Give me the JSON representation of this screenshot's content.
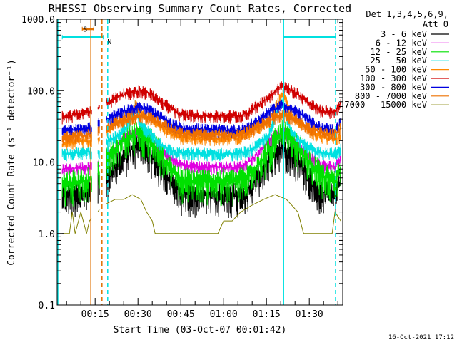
{
  "chart_data": {
    "type": "line",
    "title": "RHESSI Observing Summary Count Rates, Corrected",
    "xlabel": "Start Time (03-Oct-07 00:01:42)",
    "ylabel": "Corrected Count Rate (s⁻¹ detector⁻¹)",
    "yscale": "log",
    "ylim": [
      0.1,
      1000
    ],
    "y_ticks": [
      "1000.0",
      "100.0",
      "10.0",
      "1.0",
      "0.1"
    ],
    "x_ticks": [
      "00:15",
      "00:30",
      "00:45",
      "01:00",
      "01:15",
      "01:30"
    ],
    "xlim_minutes": [
      1.7,
      101.7
    ],
    "grid": false,
    "legend_title": "Det 1,3,4,5,6,9,",
    "legend_subtitle": "Att 0",
    "legend_position": "top-right",
    "footer_date": "16-Oct-2021 17:12",
    "flags": [
      {
        "label": "S",
        "color": "#e07000",
        "start_min": 10.5,
        "end_min": 14.5,
        "level": 730
      },
      {
        "label": "N",
        "color": "#00e0e0",
        "start_min": 3.5,
        "end_min": 17.8,
        "level": 560
      },
      {
        "label": "",
        "color": "#00e0e0",
        "start_min": 81.0,
        "end_min": 99.2,
        "level": 560
      }
    ],
    "vlines": [
      {
        "min": 13.5,
        "color": "#e07000",
        "style": "solid"
      },
      {
        "min": 17.4,
        "color": "#e07000",
        "style": "dashed"
      },
      {
        "min": 19.4,
        "color": "#00e0e0",
        "style": "dashed"
      },
      {
        "min": 81.0,
        "color": "#00e0e0",
        "style": "solid"
      },
      {
        "min": 99.2,
        "color": "#00e0e0",
        "style": "dashed"
      }
    ],
    "series": [
      {
        "name": "3 - 6 keV",
        "color": "#000000",
        "points": [
          [
            3.5,
            3.5
          ],
          [
            12,
            3.8
          ],
          [
            13.4,
            4.5
          ],
          [
            15,
            5
          ],
          [
            17,
            5.5
          ],
          [
            20,
            6
          ],
          [
            24,
            11
          ],
          [
            28,
            16
          ],
          [
            31,
            17
          ],
          [
            34,
            14
          ],
          [
            38,
            8
          ],
          [
            42,
            5
          ],
          [
            45,
            3.8
          ],
          [
            55,
            3.5
          ],
          [
            65,
            3.5
          ],
          [
            68,
            4
          ],
          [
            72,
            6
          ],
          [
            76,
            11
          ],
          [
            80,
            15.5
          ],
          [
            82,
            15
          ],
          [
            86,
            11
          ],
          [
            90,
            6
          ],
          [
            94,
            3.8
          ],
          [
            99,
            3.6
          ],
          [
            101,
            5
          ]
        ]
      },
      {
        "name": "6 - 12 keV",
        "color": "#e000e0",
        "points": [
          [
            3.5,
            8
          ],
          [
            13.4,
            8.5
          ],
          [
            15,
            9
          ],
          [
            17,
            9
          ],
          [
            20,
            12
          ],
          [
            24,
            20
          ],
          [
            28,
            25
          ],
          [
            31,
            26
          ],
          [
            34,
            22
          ],
          [
            38,
            15
          ],
          [
            42,
            10.5
          ],
          [
            45,
            9
          ],
          [
            55,
            8.5
          ],
          [
            65,
            8.5
          ],
          [
            68,
            9.5
          ],
          [
            72,
            13
          ],
          [
            76,
            20
          ],
          [
            80,
            26
          ],
          [
            82,
            25
          ],
          [
            86,
            18
          ],
          [
            90,
            12
          ],
          [
            94,
            9
          ],
          [
            99,
            8.5
          ],
          [
            101,
            12
          ]
        ]
      },
      {
        "name": "12 - 25 keV",
        "color": "#00e000",
        "points": [
          [
            3.5,
            5
          ],
          [
            12,
            5.5
          ],
          [
            13.4,
            6
          ],
          [
            15,
            7
          ],
          [
            17,
            7.5
          ],
          [
            20,
            12
          ],
          [
            24,
            19
          ],
          [
            28,
            24
          ],
          [
            31,
            25
          ],
          [
            34,
            21
          ],
          [
            38,
            13
          ],
          [
            42,
            7.5
          ],
          [
            45,
            5.5
          ],
          [
            55,
            5.3
          ],
          [
            65,
            5.3
          ],
          [
            68,
            6
          ],
          [
            72,
            9
          ],
          [
            76,
            15
          ],
          [
            80,
            25
          ],
          [
            82,
            24
          ],
          [
            86,
            16
          ],
          [
            90,
            10
          ],
          [
            94,
            6.5
          ],
          [
            99,
            5.5
          ],
          [
            101,
            9
          ]
        ]
      },
      {
        "name": "25 - 50 keV",
        "color": "#00e0e0",
        "points": [
          [
            3.5,
            13
          ],
          [
            13.4,
            14
          ],
          [
            15,
            14
          ],
          [
            17,
            14
          ],
          [
            20,
            20
          ],
          [
            24,
            25
          ],
          [
            26,
            30
          ],
          [
            28,
            45
          ],
          [
            29,
            60
          ],
          [
            30,
            45
          ],
          [
            32,
            30
          ],
          [
            35,
            24
          ],
          [
            38,
            18
          ],
          [
            42,
            14
          ],
          [
            45,
            13.5
          ],
          [
            55,
            13
          ],
          [
            65,
            13
          ],
          [
            68,
            14
          ],
          [
            72,
            17
          ],
          [
            76,
            25
          ],
          [
            78,
            40
          ],
          [
            80,
            75
          ],
          [
            81,
            70
          ],
          [
            82,
            45
          ],
          [
            84,
            25
          ],
          [
            88,
            18
          ],
          [
            92,
            14
          ],
          [
            99,
            13
          ],
          [
            101,
            15
          ]
        ]
      },
      {
        "name": "50 - 100 keV",
        "color": "#ff8800",
        "points": [
          [
            3.5,
            18
          ],
          [
            13.4,
            20
          ],
          [
            15,
            20
          ],
          [
            17,
            22
          ],
          [
            20,
            30
          ],
          [
            24,
            40
          ],
          [
            28,
            48
          ],
          [
            29,
            62
          ],
          [
            30,
            55
          ],
          [
            32,
            45
          ],
          [
            35,
            40
          ],
          [
            38,
            32
          ],
          [
            42,
            25
          ],
          [
            45,
            22
          ],
          [
            55,
            21
          ],
          [
            65,
            22
          ],
          [
            68,
            24
          ],
          [
            72,
            30
          ],
          [
            76,
            40
          ],
          [
            80,
            80
          ],
          [
            81,
            100
          ],
          [
            82,
            70
          ],
          [
            84,
            45
          ],
          [
            88,
            32
          ],
          [
            92,
            24
          ],
          [
            99,
            21
          ],
          [
            101,
            23
          ]
        ]
      },
      {
        "name": "100 - 300 keV",
        "color": "#d00000",
        "points": [
          [
            3.5,
            43
          ],
          [
            13.4,
            50
          ],
          [
            15,
            55
          ],
          [
            17,
            58
          ],
          [
            20,
            72
          ],
          [
            24,
            85
          ],
          [
            28,
            95
          ],
          [
            31,
            100
          ],
          [
            34,
            92
          ],
          [
            38,
            70
          ],
          [
            42,
            55
          ],
          [
            45,
            46
          ],
          [
            55,
            44
          ],
          [
            65,
            44
          ],
          [
            68,
            48
          ],
          [
            72,
            62
          ],
          [
            76,
            82
          ],
          [
            80,
            115
          ],
          [
            82,
            110
          ],
          [
            86,
            90
          ],
          [
            90,
            65
          ],
          [
            94,
            52
          ],
          [
            99,
            50
          ],
          [
            101,
            70
          ]
        ]
      },
      {
        "name": "300 - 800 keV",
        "color": "#0000e0",
        "points": [
          [
            3.5,
            27
          ],
          [
            13.4,
            30
          ],
          [
            15,
            32
          ],
          [
            17,
            35
          ],
          [
            20,
            42
          ],
          [
            24,
            50
          ],
          [
            28,
            56
          ],
          [
            31,
            58
          ],
          [
            34,
            54
          ],
          [
            38,
            42
          ],
          [
            42,
            33
          ],
          [
            45,
            30
          ],
          [
            55,
            28
          ],
          [
            65,
            28
          ],
          [
            68,
            30
          ],
          [
            72,
            38
          ],
          [
            76,
            50
          ],
          [
            80,
            62
          ],
          [
            82,
            60
          ],
          [
            86,
            50
          ],
          [
            90,
            38
          ],
          [
            94,
            30
          ],
          [
            99,
            28
          ],
          [
            101,
            35
          ]
        ]
      },
      {
        "name": "800 - 7000 keV",
        "color": "#ee7000",
        "points": [
          [
            3.5,
            22
          ],
          [
            13.4,
            24
          ],
          [
            15,
            26
          ],
          [
            17,
            27
          ],
          [
            20,
            32
          ],
          [
            24,
            38
          ],
          [
            28,
            42
          ],
          [
            31,
            44
          ],
          [
            34,
            42
          ],
          [
            38,
            34
          ],
          [
            42,
            28
          ],
          [
            45,
            25
          ],
          [
            55,
            24
          ],
          [
            65,
            24
          ],
          [
            68,
            26
          ],
          [
            72,
            31
          ],
          [
            76,
            38
          ],
          [
            80,
            46
          ],
          [
            82,
            45
          ],
          [
            86,
            38
          ],
          [
            90,
            30
          ],
          [
            94,
            26
          ],
          [
            99,
            24
          ],
          [
            101,
            30
          ]
        ]
      },
      {
        "name": "7000 - 15000 keV",
        "color": "#808000",
        "points": [
          [
            3.5,
            1.0
          ],
          [
            6,
            1.0
          ],
          [
            7,
            2.0
          ],
          [
            8,
            1.0
          ],
          [
            10,
            2.0
          ],
          [
            12,
            1.0
          ],
          [
            13,
            1.5
          ],
          [
            18,
            2.5
          ],
          [
            22,
            3.0
          ],
          [
            25,
            3.0
          ],
          [
            28,
            3.5
          ],
          [
            31,
            3.0
          ],
          [
            33,
            2.0
          ],
          [
            35,
            1.5
          ],
          [
            36,
            1.0
          ],
          [
            45,
            1.0
          ],
          [
            52,
            1.0
          ],
          [
            55,
            1.0
          ],
          [
            58,
            1.0
          ],
          [
            60,
            1.5
          ],
          [
            63,
            1.5
          ],
          [
            66,
            2.0
          ],
          [
            70,
            2.5
          ],
          [
            74,
            3.0
          ],
          [
            78,
            3.5
          ],
          [
            82,
            3.0
          ],
          [
            86,
            2.0
          ],
          [
            88,
            1.0
          ],
          [
            91,
            1.0
          ],
          [
            96,
            1.0
          ],
          [
            98,
            1.0
          ],
          [
            99,
            2.0
          ],
          [
            101,
            1.5
          ]
        ]
      }
    ]
  }
}
